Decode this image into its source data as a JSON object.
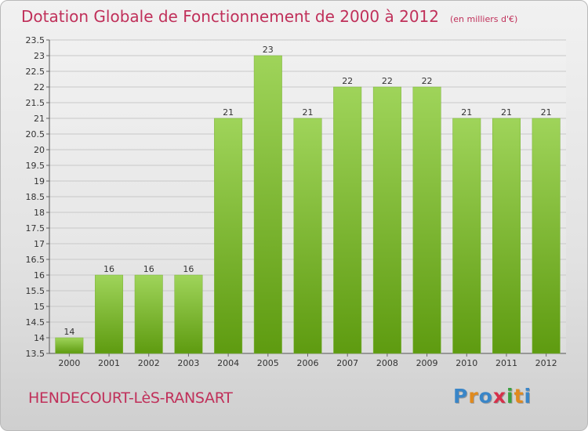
{
  "title": "Dotation Globale de Fonctionnement de 2000 à 2012",
  "unit": "(en milliers d'€)",
  "place": "HENDECOURT-LèS-RANSART",
  "logo": {
    "text": "Proxiti",
    "colors": [
      "#3a86c8",
      "#e08a1e",
      "#3a86c8",
      "#d6304a",
      "#3aa040",
      "#e08a1e",
      "#3a86c8"
    ]
  },
  "colors": {
    "bar_top": "#9fd45a",
    "bar_bottom": "#5e9b10",
    "title": "#c0305a"
  },
  "chart_data": {
    "type": "bar",
    "title": "Dotation Globale de Fonctionnement de 2000 à 2012",
    "categories": [
      "2000",
      "2001",
      "2002",
      "2003",
      "2004",
      "2005",
      "2006",
      "2007",
      "2008",
      "2009",
      "2010",
      "2011",
      "2012"
    ],
    "values": [
      14,
      16,
      16,
      16,
      21,
      23,
      21,
      22,
      22,
      22,
      21,
      21,
      21
    ],
    "ylim": [
      13.5,
      23.5
    ],
    "yticks": [
      "13.5",
      "14",
      "14.5",
      "15",
      "15.5",
      "16",
      "16.5",
      "17",
      "17.5",
      "18",
      "18.5",
      "19",
      "19.5",
      "20",
      "20.5",
      "21",
      "21.5",
      "22",
      "22.5",
      "23",
      "23.5"
    ],
    "grid": true
  }
}
